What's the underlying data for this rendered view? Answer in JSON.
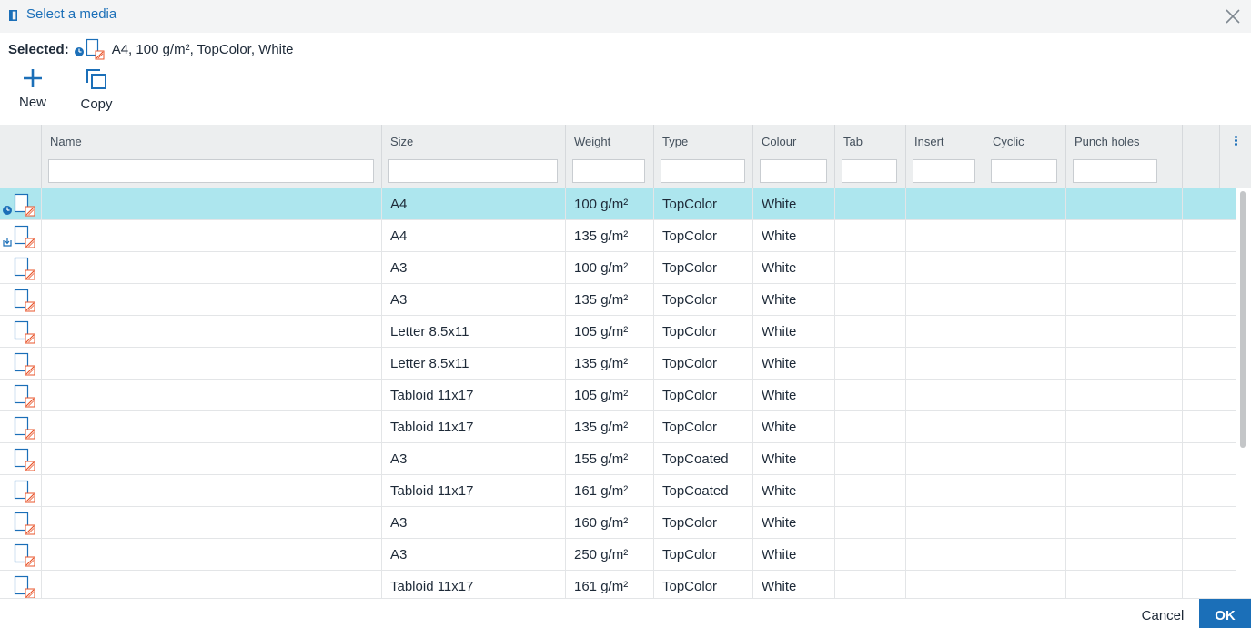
{
  "dialog": {
    "title": "Select a media",
    "close_icon": "close-icon"
  },
  "selected": {
    "label": "Selected:",
    "value": "A4, 100 g/m², TopColor, White"
  },
  "toolbar": {
    "new_label": "New",
    "copy_label": "Copy"
  },
  "columns": [
    {
      "key": "name",
      "label": "Name"
    },
    {
      "key": "size",
      "label": "Size"
    },
    {
      "key": "weight",
      "label": "Weight"
    },
    {
      "key": "type",
      "label": "Type"
    },
    {
      "key": "colour",
      "label": "Colour"
    },
    {
      "key": "tab",
      "label": "Tab"
    },
    {
      "key": "insert",
      "label": "Insert"
    },
    {
      "key": "cyclic",
      "label": "Cyclic"
    },
    {
      "key": "punch",
      "label": "Punch holes"
    }
  ],
  "rows": [
    {
      "status": "clock-icon",
      "name": "",
      "size": "A4",
      "weight": "100 g/m²",
      "type": "TopColor",
      "colour": "White",
      "tab": "",
      "insert": "",
      "cyclic": "",
      "punch": "",
      "selected": true
    },
    {
      "status": "tray-load-icon",
      "name": "",
      "size": "A4",
      "weight": "135 g/m²",
      "type": "TopColor",
      "colour": "White",
      "tab": "",
      "insert": "",
      "cyclic": "",
      "punch": ""
    },
    {
      "status": "",
      "name": "",
      "size": "A3",
      "weight": "100 g/m²",
      "type": "TopColor",
      "colour": "White",
      "tab": "",
      "insert": "",
      "cyclic": "",
      "punch": ""
    },
    {
      "status": "",
      "name": "",
      "size": "A3",
      "weight": "135 g/m²",
      "type": "TopColor",
      "colour": "White",
      "tab": "",
      "insert": "",
      "cyclic": "",
      "punch": ""
    },
    {
      "status": "",
      "name": "",
      "size": "Letter 8.5x11",
      "weight": "105 g/m²",
      "type": "TopColor",
      "colour": "White",
      "tab": "",
      "insert": "",
      "cyclic": "",
      "punch": ""
    },
    {
      "status": "",
      "name": "",
      "size": "Letter 8.5x11",
      "weight": "135 g/m²",
      "type": "TopColor",
      "colour": "White",
      "tab": "",
      "insert": "",
      "cyclic": "",
      "punch": ""
    },
    {
      "status": "",
      "name": "",
      "size": "Tabloid 11x17",
      "weight": "105 g/m²",
      "type": "TopColor",
      "colour": "White",
      "tab": "",
      "insert": "",
      "cyclic": "",
      "punch": ""
    },
    {
      "status": "",
      "name": "",
      "size": "Tabloid 11x17",
      "weight": "135 g/m²",
      "type": "TopColor",
      "colour": "White",
      "tab": "",
      "insert": "",
      "cyclic": "",
      "punch": ""
    },
    {
      "status": "",
      "name": "",
      "size": "A3",
      "weight": "155 g/m²",
      "type": "TopCoated",
      "colour": "White",
      "tab": "",
      "insert": "",
      "cyclic": "",
      "punch": ""
    },
    {
      "status": "",
      "name": "",
      "size": "Tabloid 11x17",
      "weight": "161 g/m²",
      "type": "TopCoated",
      "colour": "White",
      "tab": "",
      "insert": "",
      "cyclic": "",
      "punch": ""
    },
    {
      "status": "",
      "name": "",
      "size": "A3",
      "weight": "160 g/m²",
      "type": "TopColor",
      "colour": "White",
      "tab": "",
      "insert": "",
      "cyclic": "",
      "punch": ""
    },
    {
      "status": "",
      "name": "",
      "size": "A3",
      "weight": "250 g/m²",
      "type": "TopColor",
      "colour": "White",
      "tab": "",
      "insert": "",
      "cyclic": "",
      "punch": ""
    },
    {
      "status": "",
      "name": "",
      "size": "Tabloid 11x17",
      "weight": "161 g/m²",
      "type": "TopColor",
      "colour": "White",
      "tab": "",
      "insert": "",
      "cyclic": "",
      "punch": ""
    }
  ],
  "footer": {
    "cancel_label": "Cancel",
    "ok_label": "OK"
  },
  "colors": {
    "accent": "#1b6fb8",
    "selected_row": "#ade6ee",
    "header_bg": "#eceeef",
    "media_edit_icon": "#e8542b"
  }
}
